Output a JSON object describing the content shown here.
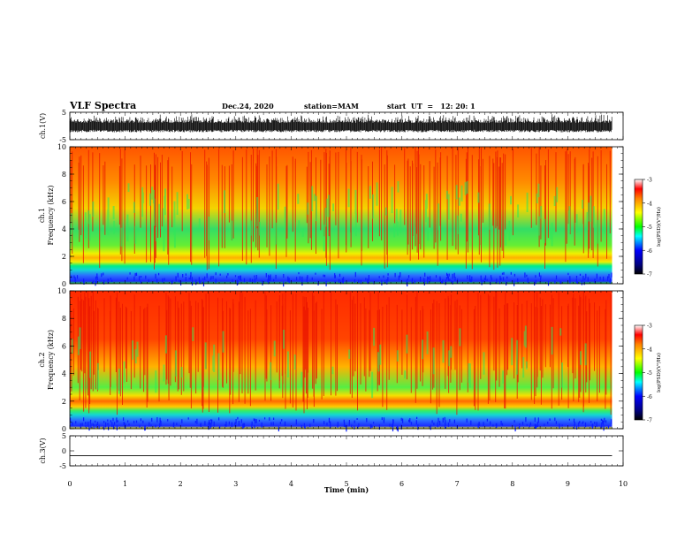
{
  "header": {
    "title": "VLF Spectra",
    "date": "Dec.24, 2020",
    "station": "station=MAM",
    "start": "start  UT  =   12: 20: 1"
  },
  "chart_data": [
    {
      "type": "line",
      "name": "ch1-waveform",
      "ylabel": "ch.1(V)",
      "yticks": [
        "5",
        "-5"
      ],
      "ylim": [
        -5,
        5
      ],
      "xlim": [
        0,
        10
      ],
      "note_values": "noisy waveform roughly between -1.5 and 4 V over 0 to 9.8 min"
    },
    {
      "type": "heatmap",
      "name": "ch1-spectrogram",
      "ylabel_top": "ch.1",
      "ylabel": "Frequency (kHz)",
      "yticks": [
        "0",
        "2",
        "4",
        "6",
        "8",
        "10"
      ],
      "ylim": [
        0,
        10
      ],
      "xlim": [
        0,
        9.8
      ],
      "colorbar": {
        "label": "log(PSD)(V²/Hz)",
        "ticks": [
          "-3",
          "-4",
          "-5",
          "-6",
          "-7"
        ],
        "range": [
          -7,
          -3
        ]
      }
    },
    {
      "type": "heatmap",
      "name": "ch2-spectrogram",
      "ylabel_top": "ch.2",
      "ylabel": "Frequency (kHz)",
      "yticks": [
        "0",
        "2",
        "4",
        "6",
        "8",
        "10"
      ],
      "ylim": [
        0,
        10
      ],
      "xlim": [
        0,
        9.8
      ],
      "colorbar": {
        "label": "log(PSD)(V²/Hz)",
        "ticks": [
          "-3",
          "-4",
          "-5",
          "-6",
          "-7"
        ],
        "range": [
          -7,
          -3
        ]
      }
    },
    {
      "type": "line",
      "name": "ch3-waveform",
      "ylabel": "ch.3(V)",
      "yticks": [
        "5",
        "0",
        "-5"
      ],
      "ylim": [
        -5,
        5
      ],
      "xlim": [
        0,
        10
      ],
      "x": [
        0,
        9.8
      ],
      "y": [
        -1.6,
        -1.6
      ]
    }
  ],
  "xaxis": {
    "label": "Time (min)",
    "ticks": [
      "0",
      "1",
      "2",
      "3",
      "4",
      "5",
      "6",
      "7",
      "8",
      "9",
      "10"
    ],
    "range": [
      0,
      10
    ]
  }
}
